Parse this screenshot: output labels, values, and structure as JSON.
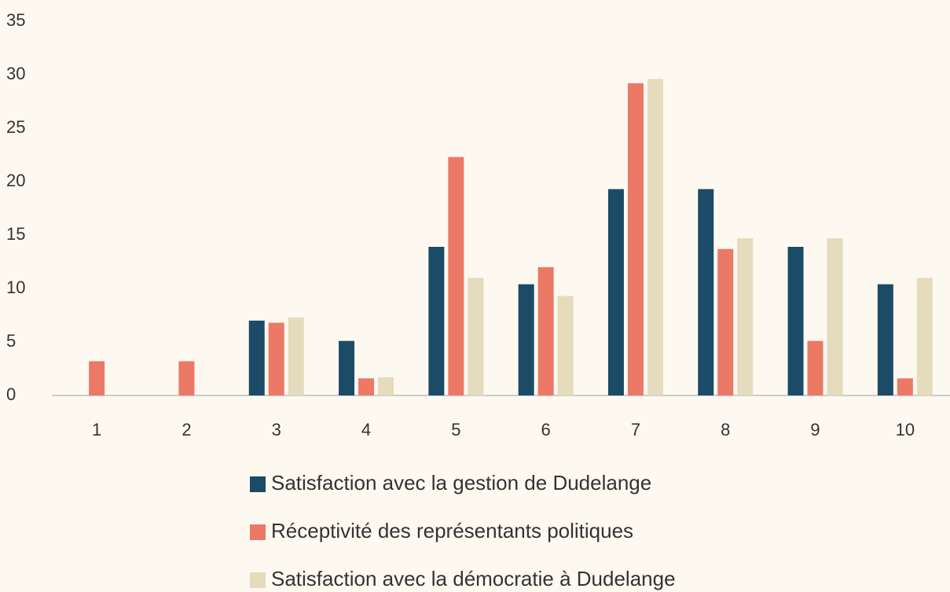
{
  "chart_data": {
    "type": "bar",
    "categories": [
      "1",
      "2",
      "3",
      "4",
      "5",
      "6",
      "7",
      "8",
      "9",
      "10"
    ],
    "series": [
      {
        "name": "Satisfaction avec la gestion de Dudelange",
        "color": "#1b4b66",
        "values": [
          0,
          0,
          7.0,
          5.1,
          13.9,
          10.4,
          19.3,
          19.3,
          13.9,
          10.4
        ]
      },
      {
        "name": "Réceptivité des représentants politiques",
        "color": "#ec7866",
        "values": [
          3.2,
          3.2,
          6.8,
          1.6,
          22.3,
          12.0,
          29.2,
          13.7,
          5.1,
          1.6
        ]
      },
      {
        "name": "Satisfaction avec la démocratie à Dudelange",
        "color": "#e5dbbd",
        "values": [
          0,
          0,
          7.3,
          1.7,
          11.0,
          9.3,
          29.6,
          14.7,
          14.7,
          11.0
        ]
      }
    ],
    "ylim": [
      0,
      35
    ],
    "yticks": [
      0,
      5,
      10,
      15,
      20,
      25,
      30,
      35
    ],
    "grid": false,
    "legend": "bottom"
  }
}
